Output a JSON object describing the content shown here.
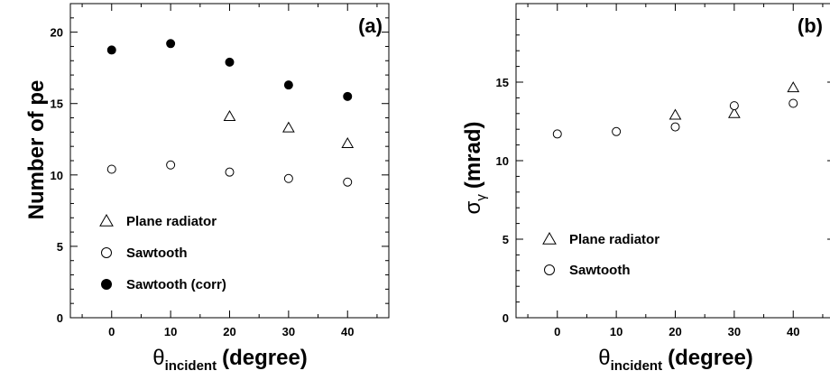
{
  "chart_data": [
    {
      "type": "scatter",
      "panel_label": "(a)",
      "xlabel_symbol": "θ",
      "xlabel_subscript": "incident",
      "xlabel_unit": "(degree)",
      "ylabel": "Number of pe",
      "xlim": [
        -7,
        47
      ],
      "ylim": [
        0,
        22
      ],
      "xticks": [
        0,
        10,
        20,
        30,
        40
      ],
      "yticks": [
        0,
        5,
        10,
        15,
        20
      ],
      "legend_placement": "bottom-left",
      "series": [
        {
          "name": "Plane radiator",
          "marker": "open-triangle",
          "x": [
            20,
            30,
            40
          ],
          "y": [
            14.1,
            13.3,
            12.2
          ]
        },
        {
          "name": "Sawtooth",
          "marker": "open-circle",
          "x": [
            0,
            10,
            20,
            30,
            40
          ],
          "y": [
            10.4,
            10.7,
            10.2,
            9.75,
            9.5
          ]
        },
        {
          "name": "Sawtooth (corr)",
          "marker": "filled-circle",
          "x": [
            0,
            10,
            20,
            30,
            40
          ],
          "y": [
            18.75,
            19.2,
            17.9,
            16.3,
            15.5
          ]
        }
      ]
    },
    {
      "type": "scatter",
      "panel_label": "(b)",
      "xlabel_symbol": "θ",
      "xlabel_subscript": "incident",
      "xlabel_unit": "(degree)",
      "ylabel_symbol": "σ",
      "ylabel_subscript": "γ",
      "ylabel_unit": "(mrad)",
      "xlim": [
        -7,
        47
      ],
      "ylim": [
        0,
        20
      ],
      "xticks": [
        0,
        10,
        20,
        30,
        40
      ],
      "yticks": [
        0,
        5,
        10,
        15
      ],
      "legend_placement": "bottom-left",
      "series": [
        {
          "name": "Plane radiator",
          "marker": "open-triangle",
          "x": [
            20,
            30,
            40
          ],
          "y": [
            12.9,
            13.0,
            14.65
          ]
        },
        {
          "name": "Sawtooth",
          "marker": "open-circle",
          "x": [
            0,
            10,
            20,
            30,
            40
          ],
          "y": [
            11.7,
            11.85,
            12.15,
            13.5,
            13.65
          ]
        }
      ]
    }
  ]
}
